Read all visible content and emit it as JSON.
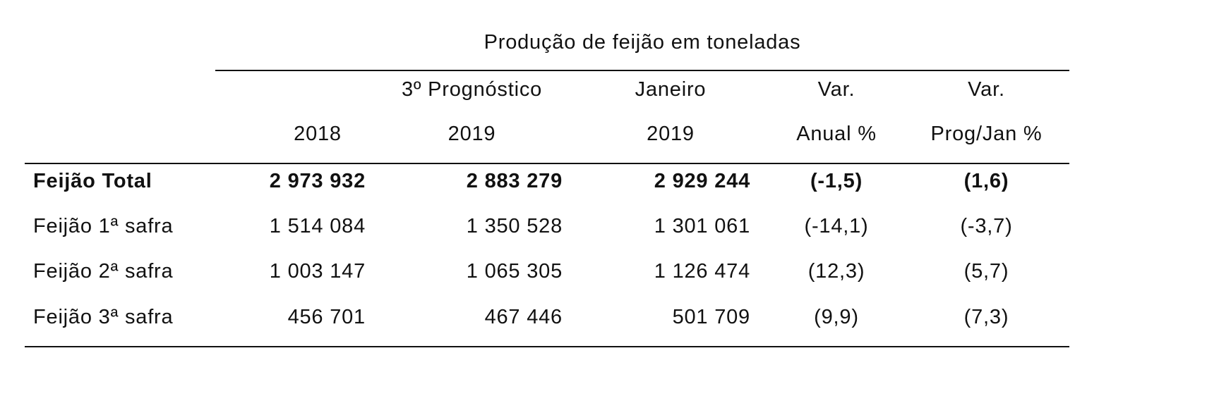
{
  "title": "Produção de feijão em toneladas",
  "headers": [
    {
      "line1": "",
      "line2": "2018"
    },
    {
      "line1": "3º Prognóstico",
      "line2": "2019"
    },
    {
      "line1": "Janeiro",
      "line2": "2019"
    },
    {
      "line1": "Var.",
      "line2": "Anual %"
    },
    {
      "line1": "Var.",
      "line2": "Prog/Jan %"
    }
  ],
  "rows": [
    {
      "label": "Feijão Total",
      "bold": true,
      "values": [
        "2 973 932",
        "2 883 279",
        "2 929 244",
        "(-1,5)",
        "(1,6)"
      ]
    },
    {
      "label": "Feijão 1ª safra",
      "bold": false,
      "values": [
        "1 514 084",
        "1 350 528",
        "1 301 061",
        "(-14,1)",
        "(-3,7)"
      ]
    },
    {
      "label": "Feijão 2ª safra",
      "bold": false,
      "values": [
        "1 003 147",
        "1 065 305",
        "1 126 474",
        "(12,3)",
        "(5,7)"
      ]
    },
    {
      "label": "Feijão 3ª safra",
      "bold": false,
      "values": [
        "456 701",
        "467 446",
        "501 709",
        "(9,9)",
        "(7,3)"
      ]
    }
  ]
}
